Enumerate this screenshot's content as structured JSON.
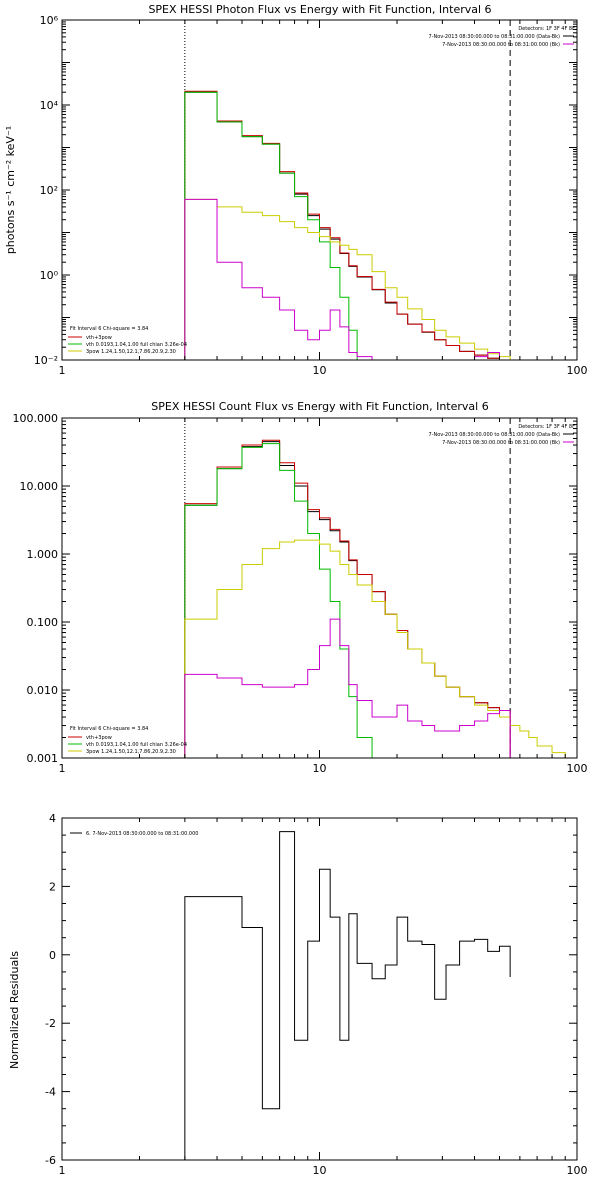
{
  "chart_data": [
    {
      "type": "line",
      "id": "photon",
      "title": "SPEX HESSI Photon Flux vs Energy with Fit Function, Interval 6",
      "ylabel": "photons s⁻¹ cm⁻² keV⁻¹",
      "xlabel": "",
      "xscale": "log",
      "yscale": "log",
      "xlim": [
        1,
        100
      ],
      "ylim": [
        0.01,
        1000000
      ],
      "x_ticks": [
        "1",
        "10",
        "100"
      ],
      "y_ticks": [
        "10⁻²",
        "10⁰",
        "10²",
        "10⁴",
        "10⁶"
      ],
      "vlines": [
        {
          "x": 3,
          "style": "dotted"
        },
        {
          "x": 55,
          "style": "dashed"
        }
      ],
      "legend_top": [
        {
          "text": "Detectors: 1F 3F 4F 8F",
          "color": "#000000"
        },
        {
          "text": "7-Nov-2013 08:30:00.000 to 08:31:00.000 (Data-Bk)",
          "color": "#000000"
        },
        {
          "text": "7-Nov-2013 08:30:00.000 to 08:31:00.000 (Bk)",
          "color": "#cc00cc"
        }
      ],
      "legend_bottom": [
        {
          "text": "Fit Interval 6   Chi-square = 3.84",
          "color": "#000000"
        },
        {
          "text": "vth+3pow",
          "color": "#cc0000"
        },
        {
          "text": "vth 0.0193,1.04,1.00  full chian 3.26e-04",
          "color": "#00bb00"
        },
        {
          "text": "3pow 1.24,1.50,12.1,7.86,20.9,2.30",
          "color": "#cccc00"
        }
      ],
      "edges": [
        3,
        4,
        5,
        6,
        7,
        8,
        9,
        10,
        11,
        12,
        13,
        14,
        16,
        18,
        20,
        22,
        25,
        28,
        31,
        35,
        40,
        45,
        50,
        55,
        60,
        65,
        70
      ],
      "series": [
        {
          "color": "#000000",
          "values": [
            20000,
            4000,
            1800,
            1200,
            250,
            80,
            25,
            12,
            7,
            3.2,
            1.6,
            0.9,
            0.45,
            0.22,
            0.12,
            0.07,
            0.045,
            0.03,
            0.022,
            0.016,
            0.013,
            0.011,
            0.01
          ]
        },
        {
          "color": "#cc0000",
          "values": [
            21000,
            4200,
            1900,
            1250,
            270,
            85,
            27,
            13,
            7.5,
            3.3,
            1.65,
            0.92,
            0.46,
            0.23,
            0.12,
            0.07,
            0.046,
            0.03,
            0.022,
            0.016,
            0.013,
            0.011,
            0.01
          ]
        },
        {
          "color": "#00bb00",
          "values": [
            20000,
            4000,
            1800,
            1200,
            250,
            70,
            20,
            6,
            1.5,
            0.3,
            0.05,
            0.01,
            0.002
          ]
        },
        {
          "color": "#cccc00",
          "values": [
            60,
            40,
            30,
            25,
            18,
            13,
            10,
            8,
            6,
            5,
            4,
            3,
            1.2,
            0.5,
            0.3,
            0.16,
            0.09,
            0.05,
            0.035,
            0.025,
            0.018,
            0.014,
            0.012,
            0.01,
            0.007,
            0.006
          ]
        },
        {
          "color": "#cc00cc",
          "values": [
            60,
            2,
            0.5,
            0.3,
            0.15,
            0.05,
            0.03,
            0.05,
            0.15,
            0.06,
            0.015,
            0.012,
            0.01,
            0.01,
            0.009,
            0.008,
            0.01,
            0.009,
            0.009,
            0.01,
            0.012,
            0.015,
            0.01
          ]
        }
      ]
    },
    {
      "type": "line",
      "id": "count",
      "title": "SPEX HESSI Count Flux vs Energy with Fit Function, Interval 6",
      "ylabel": "",
      "xlabel": "",
      "xscale": "log",
      "yscale": "log",
      "xlim": [
        1,
        100
      ],
      "ylim": [
        0.001,
        100
      ],
      "x_ticks": [
        "1",
        "10",
        "100"
      ],
      "y_ticks": [
        "0.001",
        "0.010",
        "0.100",
        "1.000",
        "10.000",
        "100.000"
      ],
      "vlines": [
        {
          "x": 3,
          "style": "dotted"
        },
        {
          "x": 55,
          "style": "dashed"
        }
      ],
      "legend_top": [
        {
          "text": "Detectors: 1F 3F 4F 8F",
          "color": "#000000"
        },
        {
          "text": "7-Nov-2013 08:30:00.000 to 08:31:00.000 (Data-Bk)",
          "color": "#000000"
        },
        {
          "text": "7-Nov-2013 08:30:00.000 to 08:31:00.000 (Bk)",
          "color": "#cc00cc"
        }
      ],
      "legend_bottom": [
        {
          "text": "Fit Interval 6   Chi-square = 3.84",
          "color": "#000000"
        },
        {
          "text": "vth+3pow",
          "color": "#cc0000"
        },
        {
          "text": "vth 0.0193,1.04,1.00  full chian 3.26e-04",
          "color": "#00bb00"
        },
        {
          "text": "3pow 1.24,1.50,12.1,7.86,20.9,2.30",
          "color": "#cccc00"
        }
      ],
      "edges": [
        3,
        4,
        5,
        6,
        7,
        8,
        9,
        10,
        11,
        12,
        13,
        14,
        16,
        18,
        20,
        22,
        25,
        28,
        31,
        35,
        40,
        45,
        50,
        55,
        60,
        65,
        70,
        80,
        90,
        100
      ],
      "series": [
        {
          "color": "#000000",
          "values": [
            5.2,
            18,
            38,
            45,
            20,
            10,
            4.2,
            3.2,
            2.2,
            1.5,
            0.8,
            0.5,
            0.28,
            0.13,
            0.075,
            0.04,
            0.025,
            0.016,
            0.011,
            0.008,
            0.0065,
            0.0055,
            0.005
          ]
        },
        {
          "color": "#cc0000",
          "values": [
            5.5,
            19,
            40,
            47,
            22,
            11,
            4.5,
            3.4,
            2.3,
            1.55,
            0.82,
            0.5,
            0.28,
            0.13,
            0.075,
            0.04,
            0.025,
            0.016,
            0.011,
            0.008,
            0.0065,
            0.0055,
            0.005
          ]
        },
        {
          "color": "#00bb00",
          "values": [
            5.2,
            18,
            37,
            42,
            17,
            6,
            2,
            0.6,
            0.2,
            0.04,
            0.008,
            0.002,
            0.0005
          ]
        },
        {
          "color": "#cccc00",
          "values": [
            0.11,
            0.3,
            0.7,
            1.2,
            1.5,
            1.6,
            1.6,
            1.4,
            1.1,
            0.7,
            0.5,
            0.35,
            0.2,
            0.13,
            0.07,
            0.04,
            0.025,
            0.016,
            0.011,
            0.008,
            0.006,
            0.005,
            0.004,
            0.003,
            0.0025,
            0.002,
            0.0015,
            0.0012,
            0.001
          ]
        },
        {
          "color": "#cc00cc",
          "values": [
            0.017,
            0.015,
            0.012,
            0.011,
            0.011,
            0.012,
            0.02,
            0.045,
            0.11,
            0.045,
            0.012,
            0.007,
            0.004,
            0.004,
            0.006,
            0.0035,
            0.003,
            0.0025,
            0.0025,
            0.003,
            0.0035,
            0.0045,
            0.005
          ]
        }
      ]
    },
    {
      "type": "line",
      "id": "resid",
      "title": "",
      "ylabel": "Normalized Residuals",
      "xlabel": "",
      "xscale": "log",
      "yscale": "linear",
      "xlim": [
        1,
        100
      ],
      "ylim": [
        -6,
        4
      ],
      "x_ticks": [
        "1",
        "10",
        "100"
      ],
      "y_ticks": [
        "-6",
        "-4",
        "-2",
        "0",
        "2",
        "4"
      ],
      "legend_top_left": "6. 7-Nov-2013 08:30:00.000 to 08:31:00.000",
      "edges": [
        3,
        4,
        5,
        6,
        7,
        8,
        9,
        10,
        11,
        12,
        13,
        14,
        16,
        18,
        20,
        22,
        25,
        28,
        31,
        35,
        40,
        45,
        50,
        55
      ],
      "series": [
        {
          "color": "#000000",
          "values": [
            1.7,
            1.7,
            0.8,
            -4.5,
            3.6,
            -2.5,
            0.4,
            2.5,
            1.1,
            -2.5,
            1.2,
            -0.25,
            -0.7,
            -0.3,
            1.1,
            0.4,
            0.3,
            -1.3,
            -0.3,
            0.4,
            0.45,
            0.1,
            0.25,
            -0.65
          ]
        }
      ]
    }
  ]
}
